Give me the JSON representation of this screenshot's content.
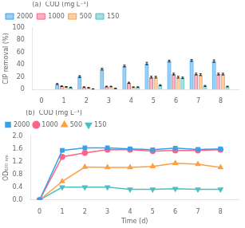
{
  "chart_data": [
    {
      "type": "bar",
      "title": "(a)  COD (mg L⁻¹)",
      "x": [
        1,
        2,
        3,
        4,
        5,
        6,
        7,
        8
      ],
      "series": [
        {
          "name": "2000",
          "values": [
            9.0,
            21.0,
            33.0,
            38.0,
            42.0,
            46.0,
            47.0,
            46.0
          ],
          "errors": [
            0.8,
            1.5,
            1.5,
            1.5,
            2.0,
            1.5,
            1.5,
            2.0
          ]
        },
        {
          "name": "1000",
          "values": [
            5.5,
            4.0,
            5.0,
            11.0,
            20.0,
            25.0,
            25.0,
            25.0
          ],
          "errors": [
            0.5,
            0.5,
            0.5,
            1.0,
            1.5,
            1.5,
            1.5,
            1.5
          ]
        },
        {
          "name": "500",
          "values": [
            4.5,
            3.0,
            5.0,
            4.0,
            20.0,
            20.0,
            24.0,
            25.0
          ],
          "errors": [
            0.5,
            0.5,
            0.5,
            0.5,
            1.5,
            1.5,
            1.5,
            1.5
          ]
        },
        {
          "name": "150",
          "values": [
            3.5,
            1.0,
            2.0,
            4.0,
            7.0,
            19.0,
            6.0,
            5.0
          ],
          "errors": [
            0.4,
            0.3,
            0.3,
            0.5,
            0.8,
            1.2,
            0.8,
            0.5
          ]
        }
      ],
      "xlim": [
        -0.4,
        8.8
      ],
      "xticks": [
        0,
        1,
        2,
        3,
        4,
        5,
        6,
        7,
        8
      ],
      "ylim": [
        0,
        100
      ],
      "yticks": [
        0,
        20,
        40,
        60,
        80,
        100
      ],
      "ylabel": "CIP removal (%)",
      "grid": false,
      "legend": "upper left"
    },
    {
      "type": "line",
      "title": "(b)  COD (mg L⁻¹)",
      "x": [
        0,
        1,
        2,
        3,
        4,
        5,
        6,
        7,
        8
      ],
      "series": [
        {
          "name": "2000",
          "marker": "square",
          "values": [
            0.0,
            1.55,
            1.63,
            1.63,
            1.6,
            1.57,
            1.62,
            1.58,
            1.6
          ]
        },
        {
          "name": "1000",
          "marker": "circle",
          "values": [
            0.0,
            1.35,
            1.47,
            1.57,
            1.57,
            1.53,
            1.55,
            1.55,
            1.57
          ]
        },
        {
          "name": "500",
          "marker": "triangle-up",
          "values": [
            0.0,
            0.58,
            1.03,
            1.02,
            1.02,
            1.05,
            1.15,
            1.12,
            1.02
          ]
        },
        {
          "name": "150",
          "marker": "triangle-down",
          "values": [
            0.0,
            0.4,
            0.4,
            0.4,
            0.33,
            0.33,
            0.35,
            0.33,
            0.33
          ]
        }
      ],
      "xlim": [
        -0.4,
        8.8
      ],
      "xticks": [
        0,
        1,
        2,
        3,
        4,
        5,
        6,
        7,
        8
      ],
      "ylim": [
        0.0,
        2.0
      ],
      "yticks": [
        {
          "value": 0,
          "label": "0.0"
        },
        0.4,
        0.8,
        1.2,
        1.6,
        {
          "value": 2,
          "label": "2.0"
        }
      ],
      "xlabel": "Time (d)",
      "ylabel": "OD₆₀₀ ₙₘ",
      "grid": false,
      "legend": "upper left"
    }
  ]
}
